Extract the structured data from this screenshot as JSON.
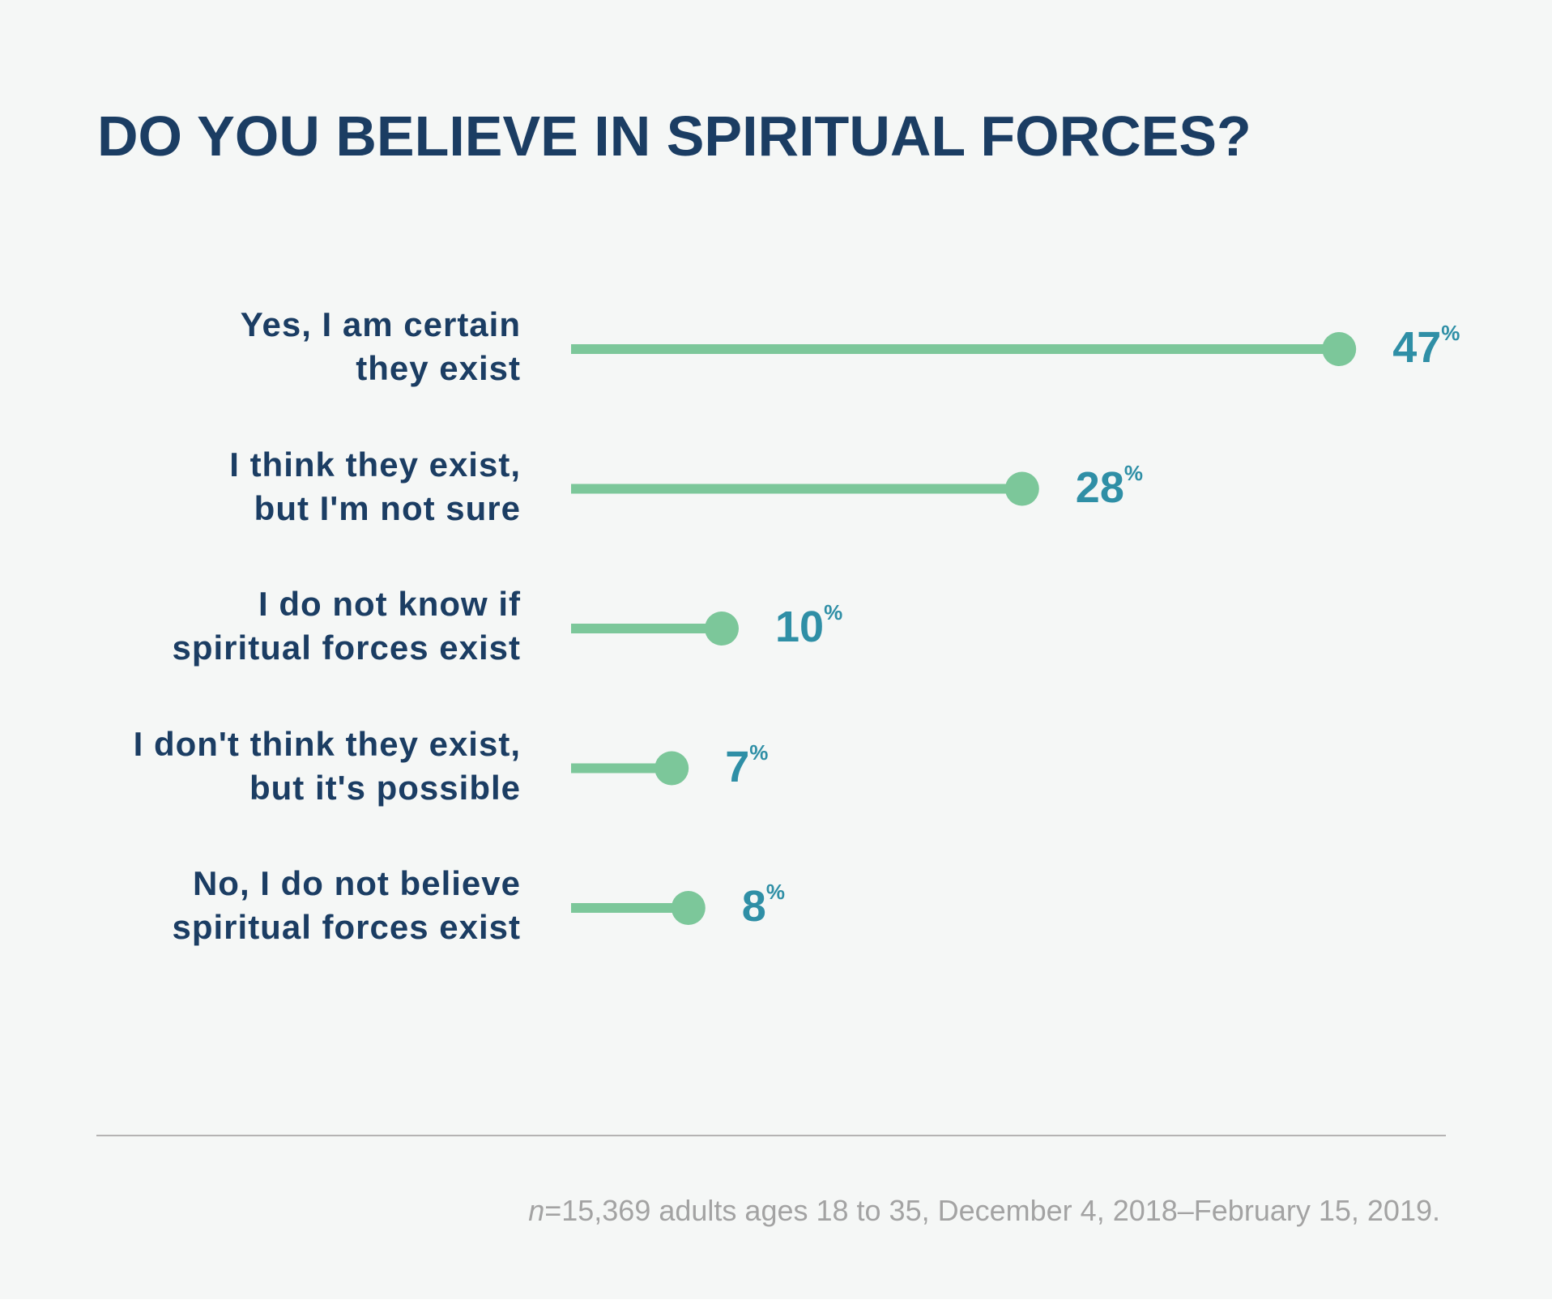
{
  "chart_data": {
    "type": "bar",
    "title": "DO YOU BELIEVE IN SPIRITUAL FORCES?",
    "categories": [
      [
        "Yes, I am certain",
        "they exist"
      ],
      [
        "I think they exist,",
        "but I'm not sure"
      ],
      [
        "I do not know if",
        "spiritual forces exist"
      ],
      [
        "I don't think they exist,",
        "but it's possible"
      ],
      [
        "No, I do not believe",
        "spiritual forces exist"
      ]
    ],
    "values": [
      47,
      28,
      10,
      7,
      8
    ],
    "value_labels": [
      "47",
      "28",
      "10",
      "7",
      "8"
    ],
    "unit": "%",
    "orientation": "horizontal",
    "style": "lollipop",
    "grid": false,
    "colors": {
      "bar": "#7cc79a",
      "value": "#2f8fa6",
      "title": "#1b3d63"
    }
  },
  "footnote": {
    "n": "n",
    "text": "=15,369 adults ages 18 to 35, December 4, 2018–February 15, 2019."
  }
}
